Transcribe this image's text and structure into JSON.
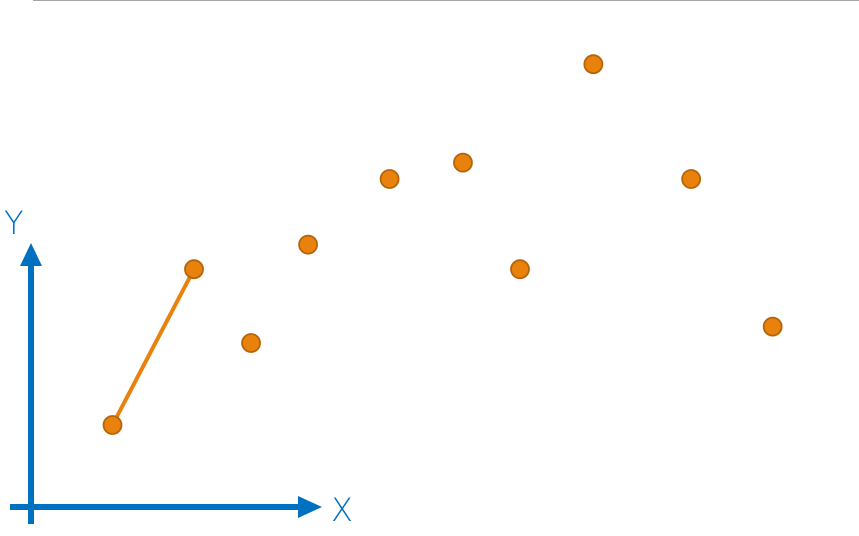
{
  "chart_data": {
    "type": "scatter",
    "axes": {
      "x_label": "X",
      "y_label": "Y"
    },
    "points": [
      {
        "x": 1.0,
        "y": 1.0
      },
      {
        "x": 2.0,
        "y": 2.9
      },
      {
        "x": 2.7,
        "y": 2.0
      },
      {
        "x": 3.4,
        "y": 3.2
      },
      {
        "x": 4.4,
        "y": 4.0
      },
      {
        "x": 5.3,
        "y": 4.2
      },
      {
        "x": 6.0,
        "y": 2.9
      },
      {
        "x": 6.9,
        "y": 5.4
      },
      {
        "x": 8.1,
        "y": 4.0
      },
      {
        "x": 9.1,
        "y": 2.2
      }
    ],
    "segments": [
      {
        "from": 0,
        "to": 1
      }
    ],
    "grid": false,
    "legend": "none"
  },
  "colors": {
    "axis": "#0070C0",
    "point_fill": "#E8820C",
    "point_stroke": "#B5640A",
    "segment": "#E8820C",
    "top_rule": "#a6a6a6",
    "label": "#0070C0"
  }
}
